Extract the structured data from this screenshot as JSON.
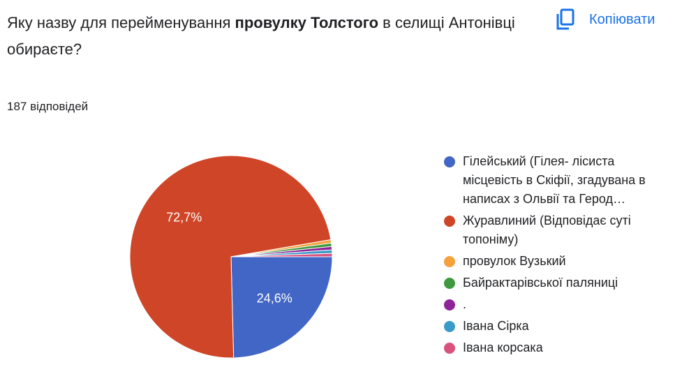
{
  "header": {
    "title_parts": [
      "Яку назву для перейменування ",
      "провулку Толстого",
      " в селищі Антонівці обираєте?"
    ],
    "copy_button": "Копіювати",
    "responses": "187 відповідей"
  },
  "chart_data": {
    "type": "pie",
    "categories": [
      "Гілейський (Гілея- лісиста місцевість в Скіфії, згадувана в написах з Ольвії та Герод…",
      "Журавлиний (Відповідає суті топоніму)",
      "провулок Вузький",
      "Байрактарівської паляниці",
      ".",
      "Івана Сірка",
      "Івана корсака"
    ],
    "values": [
      24.6,
      72.7,
      0.54,
      0.54,
      0.54,
      0.54,
      0.54
    ],
    "value_labels": [
      "24,6%",
      "72,7%",
      null,
      null,
      null,
      null,
      null
    ],
    "colors": [
      "#4266c5",
      "#cf4527",
      "#f4a23c",
      "#3f9a3f",
      "#8e2497",
      "#3a9bc6",
      "#d9527d"
    ]
  }
}
